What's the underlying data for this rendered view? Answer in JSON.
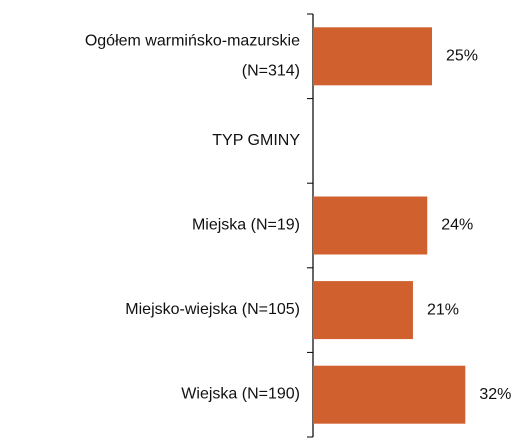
{
  "chart_data": {
    "type": "bar",
    "orientation": "horizontal",
    "categories": [
      "Ogółem warmińsko-mazurskie\n(N=314)",
      "TYP GMINY",
      "Miejska (N=19)",
      "Miejsko-wiejska (N=105)",
      "Wiejska (N=190)"
    ],
    "values": [
      25,
      null,
      24,
      21,
      32
    ],
    "value_labels": [
      "25%",
      null,
      "24%",
      "21%",
      "32%"
    ],
    "color": "#d0612f"
  }
}
